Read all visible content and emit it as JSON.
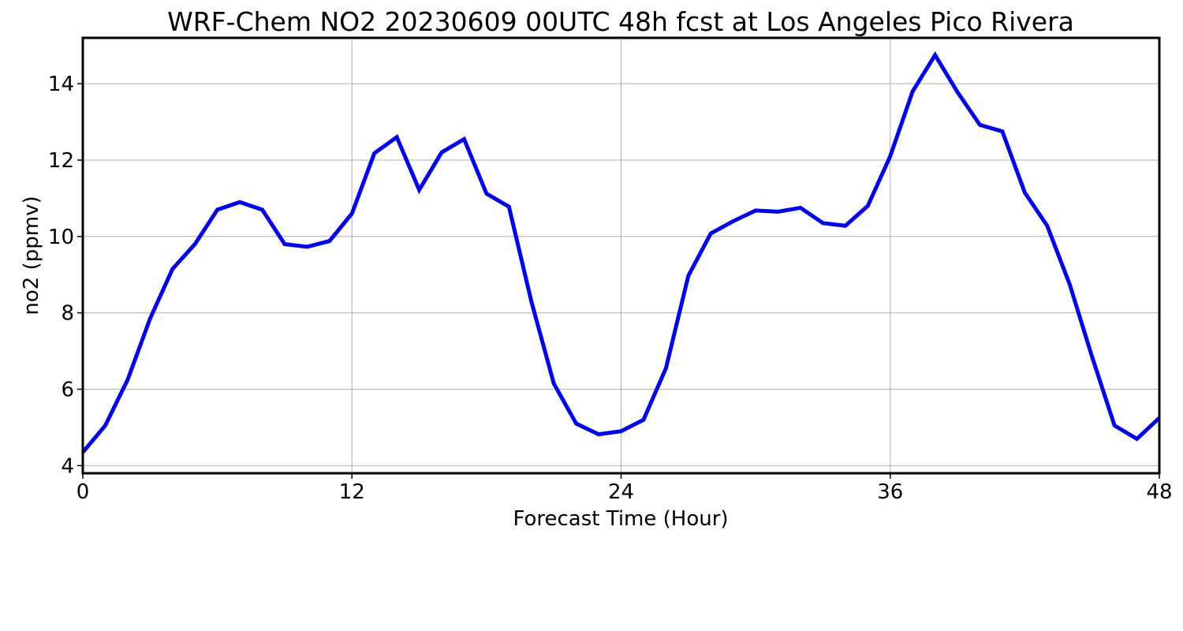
{
  "chart_data": {
    "type": "line",
    "title": "WRF-Chem NO2  20230609 00UTC 48h fcst at Los Angeles Pico Rivera",
    "xlabel": "Forecast Time (Hour)",
    "ylabel": "no2  (ppmv)",
    "xlim": [
      0,
      48
    ],
    "ylim": [
      3.8,
      15.2
    ],
    "xticks": [
      0,
      12,
      24,
      36,
      48
    ],
    "xtick_labels": [
      "0",
      "12",
      "24",
      "36",
      "48"
    ],
    "yticks": [
      4,
      6,
      8,
      10,
      12,
      14
    ],
    "ytick_labels": [
      "4",
      "6",
      "8",
      "10",
      "12",
      "14"
    ],
    "grid": true,
    "series": [
      {
        "color": "#0000ff",
        "x": [
          0,
          1,
          2,
          3,
          4,
          5,
          6,
          7,
          8,
          9,
          10,
          11,
          12,
          13,
          14,
          15,
          16,
          17,
          18,
          19,
          20,
          21,
          22,
          23,
          24,
          25,
          26,
          27,
          28,
          29,
          30,
          31,
          32,
          33,
          34,
          35,
          36,
          37,
          38,
          39,
          40,
          41,
          42,
          43,
          44,
          45,
          46,
          47,
          48
        ],
        "values": [
          4.35,
          5.05,
          6.25,
          7.85,
          9.15,
          9.8,
          10.7,
          10.9,
          10.7,
          9.8,
          9.73,
          9.88,
          10.6,
          12.18,
          12.6,
          11.22,
          12.2,
          12.55,
          11.12,
          10.78,
          8.3,
          6.15,
          5.1,
          4.82,
          4.9,
          5.2,
          6.55,
          8.97,
          10.08,
          10.4,
          10.68,
          10.65,
          10.75,
          10.35,
          10.28,
          10.8,
          12.1,
          13.8,
          14.75,
          13.78,
          12.92,
          12.75,
          11.15,
          10.28,
          8.75,
          6.85,
          5.05,
          4.7,
          5.25
        ]
      }
    ]
  }
}
